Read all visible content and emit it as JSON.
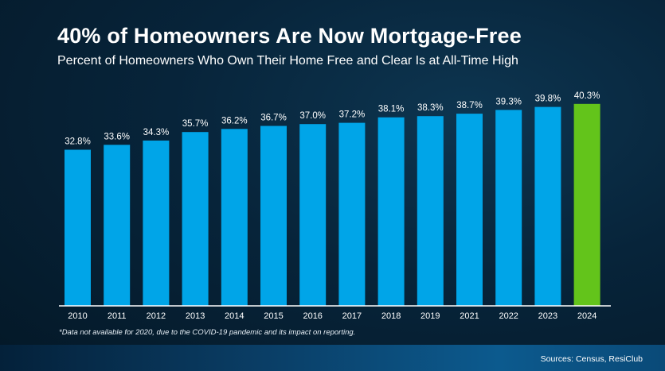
{
  "header": {
    "title": "40% of Homeowners Are Now Mortgage-Free",
    "subtitle": "Percent of Homeowners Who Own Their Home Free and Clear Is at All-Time High"
  },
  "footnote": "*Data not available for 2020, due to the COVID-19 pandemic and its impact on reporting.",
  "sources": "Sources: Census, ResiClub",
  "colors": {
    "bar": "#00a5e8",
    "highlight_bar": "#63c41b",
    "axis_line": "#ffffff"
  },
  "chart_data": {
    "type": "bar",
    "categories": [
      "2010",
      "2011",
      "2012",
      "2013",
      "2014",
      "2015",
      "2016",
      "2017",
      "2018",
      "2019",
      "2021",
      "2022",
      "2023",
      "2024"
    ],
    "values": [
      32.8,
      33.6,
      34.3,
      35.7,
      36.2,
      36.7,
      37.0,
      37.2,
      38.1,
      38.3,
      38.7,
      39.3,
      39.8,
      40.3
    ],
    "data_labels": [
      "32.8%",
      "33.6%",
      "34.3%",
      "35.7%",
      "36.2%",
      "36.7%",
      "37.0%",
      "37.2%",
      "38.1%",
      "38.3%",
      "38.7%",
      "39.3%",
      "39.8%",
      "40.3%"
    ],
    "highlight_category": "2024",
    "xlabel": "",
    "ylabel": "",
    "grid": false,
    "legend": "none"
  }
}
